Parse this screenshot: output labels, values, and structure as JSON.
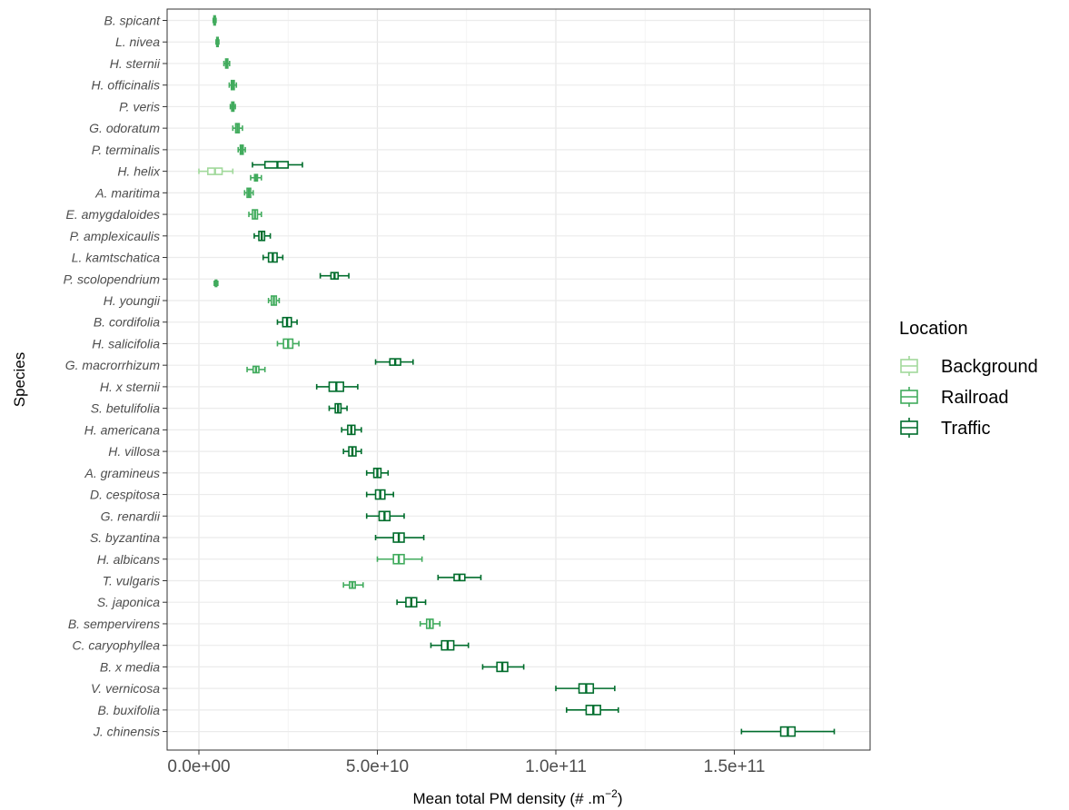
{
  "chart_data": {
    "type": "boxplot",
    "xlabel": "Mean total PM density (# .m",
    "xlabel_sup": "−2",
    "xlabel_end": ")",
    "ylabel": "Species",
    "xlim": [
      -10000000000.0,
      188000000000.0
    ],
    "x_ticks": [
      0,
      50000000000.0,
      100000000000.0,
      150000000000.0
    ],
    "x_tick_labels": [
      "0.0e+00",
      "5.0e+10",
      "1.0e+11",
      "1.5e+11"
    ],
    "grid": true,
    "legend": {
      "title": "Location",
      "placement": "right",
      "entries": [
        {
          "name": "Background",
          "color": "#a1d99b"
        },
        {
          "name": "Railroad",
          "color": "#41ab5d"
        },
        {
          "name": "Traffic",
          "color": "#006d2c"
        }
      ]
    },
    "species": [
      "B. spicant",
      "L. nivea",
      "H. sternii",
      "H. officinalis",
      "P. veris",
      "G. odoratum",
      "P. terminalis",
      "H. helix",
      "A. maritima",
      "E. amygdaloides",
      "P. amplexicaulis",
      "L. kamtschatica",
      "P. scolopendrium",
      "H. youngii",
      "B. cordifolia",
      "H. salicifolia",
      "G. macrorrhizum",
      "H. x sternii",
      "S. betulifolia",
      "H. americana",
      "H. villosa",
      "A. gramineus",
      "D. cespitosa",
      "G. renardii",
      "S. byzantina",
      "H. albicans",
      "T. vulgaris",
      "S. japonica",
      "B. sempervirens",
      "C. caryophyllea",
      "B. x media",
      "V. vernicosa",
      "B. buxifolia",
      "J. chinensis"
    ],
    "boxes": [
      {
        "species": "B. spicant",
        "location": "Railroad",
        "min": 4000000000.0,
        "q1": 4200000000.0,
        "median": 4400000000.0,
        "q3": 4600000000.0,
        "max": 4800000000.0
      },
      {
        "species": "L. nivea",
        "location": "Railroad",
        "min": 4800000000.0,
        "q1": 5000000000.0,
        "median": 5200000000.0,
        "q3": 5400000000.0,
        "max": 5600000000.0
      },
      {
        "species": "H. sternii",
        "location": "Railroad",
        "min": 7000000000.0,
        "q1": 7500000000.0,
        "median": 7800000000.0,
        "q3": 8100000000.0,
        "max": 8600000000.0
      },
      {
        "species": "H. officinalis",
        "location": "Railroad",
        "min": 8500000000.0,
        "q1": 9100000000.0,
        "median": 9500000000.0,
        "q3": 9900000000.0,
        "max": 10500000000.0
      },
      {
        "species": "P. veris",
        "location": "Railroad",
        "min": 8800000000.0,
        "q1": 9200000000.0,
        "median": 9500000000.0,
        "q3": 9800000000.0,
        "max": 10200000000.0
      },
      {
        "species": "G. odoratum",
        "location": "Railroad",
        "min": 9500000000.0,
        "q1": 10300000000.0,
        "median": 10800000000.0,
        "q3": 11300000000.0,
        "max": 12200000000.0
      },
      {
        "species": "P. terminalis",
        "location": "Railroad",
        "min": 11000000000.0,
        "q1": 11600000000.0,
        "median": 12000000000.0,
        "q3": 12400000000.0,
        "max": 13000000000.0
      },
      {
        "species": "H. helix",
        "location": "Traffic",
        "min": 15000000000.0,
        "q1": 18500000000.0,
        "median": 22000000000.0,
        "q3": 25000000000.0,
        "max": 29000000000.0,
        "offset": -0.3
      },
      {
        "species": "H. helix",
        "location": "Background",
        "min": 0,
        "q1": 2500000000.0,
        "median": 4500000000.0,
        "q3": 6500000000.0,
        "max": 9500000000.0,
        "offset": 0.0
      },
      {
        "species": "H. helix",
        "location": "Railroad",
        "min": 14500000000.0,
        "q1": 15600000000.0,
        "median": 16000000000.0,
        "q3": 16400000000.0,
        "max": 17500000000.0,
        "offset": 0.3
      },
      {
        "species": "A. maritima",
        "location": "Railroad",
        "min": 12800000000.0,
        "q1": 13500000000.0,
        "median": 14000000000.0,
        "q3": 14500000000.0,
        "max": 15200000000.0
      },
      {
        "species": "E. amygdaloides",
        "location": "Railroad",
        "min": 14000000000.0,
        "q1": 15000000000.0,
        "median": 15700000000.0,
        "q3": 16400000000.0,
        "max": 17500000000.0
      },
      {
        "species": "P. amplexicaulis",
        "location": "Traffic",
        "min": 15500000000.0,
        "q1": 16800000000.0,
        "median": 17600000000.0,
        "q3": 18400000000.0,
        "max": 20000000000.0
      },
      {
        "species": "L. kamtschatica",
        "location": "Traffic",
        "min": 18000000000.0,
        "q1": 19500000000.0,
        "median": 20700000000.0,
        "q3": 21900000000.0,
        "max": 23500000000.0
      },
      {
        "species": "P. scolopendrium",
        "location": "Traffic",
        "min": 34000000000.0,
        "q1": 37000000000.0,
        "median": 38000000000.0,
        "q3": 39000000000.0,
        "max": 42000000000.0,
        "offset": -0.15
      },
      {
        "species": "P. scolopendrium",
        "location": "Railroad",
        "min": 4300000000.0,
        "q1": 4600000000.0,
        "median": 4800000000.0,
        "q3": 5000000000.0,
        "max": 5300000000.0,
        "offset": 0.2
      },
      {
        "species": "H. youngii",
        "location": "Railroad",
        "min": 19500000000.0,
        "q1": 20300000000.0,
        "median": 21000000000.0,
        "q3": 21700000000.0,
        "max": 22500000000.0
      },
      {
        "species": "B. cordifolia",
        "location": "Traffic",
        "min": 22000000000.0,
        "q1": 23500000000.0,
        "median": 24700000000.0,
        "q3": 25900000000.0,
        "max": 27500000000.0
      },
      {
        "species": "H. salicifolia",
        "location": "Railroad",
        "min": 22000000000.0,
        "q1": 23700000000.0,
        "median": 25000000000.0,
        "q3": 26300000000.0,
        "max": 28000000000.0
      },
      {
        "species": "G. macrorrhizum",
        "location": "Traffic",
        "min": 49500000000.0,
        "q1": 53500000000.0,
        "median": 55000000000.0,
        "q3": 56500000000.0,
        "max": 60000000000.0,
        "offset": -0.15
      },
      {
        "species": "G. macrorrhizum",
        "location": "Railroad",
        "min": 13500000000.0,
        "q1": 15200000000.0,
        "median": 16000000000.0,
        "q3": 16800000000.0,
        "max": 18500000000.0,
        "offset": 0.2
      },
      {
        "species": "H. x sternii",
        "location": "Traffic",
        "min": 33000000000.0,
        "q1": 36500000000.0,
        "median": 38500000000.0,
        "q3": 40500000000.0,
        "max": 44500000000.0
      },
      {
        "species": "S. betulifolia",
        "location": "Traffic",
        "min": 36500000000.0,
        "q1": 38200000000.0,
        "median": 39000000000.0,
        "q3": 39800000000.0,
        "max": 41500000000.0
      },
      {
        "species": "H. americana",
        "location": "Traffic",
        "min": 40000000000.0,
        "q1": 41700000000.0,
        "median": 42700000000.0,
        "q3": 43700000000.0,
        "max": 45500000000.0
      },
      {
        "species": "H. villosa",
        "location": "Traffic",
        "min": 40500000000.0,
        "q1": 42000000000.0,
        "median": 43000000000.0,
        "q3": 44000000000.0,
        "max": 45500000000.0
      },
      {
        "species": "A. gramineus",
        "location": "Traffic",
        "min": 47000000000.0,
        "q1": 49000000000.0,
        "median": 50000000000.0,
        "q3": 51000000000.0,
        "max": 53000000000.0
      },
      {
        "species": "D. cespitosa",
        "location": "Traffic",
        "min": 47000000000.0,
        "q1": 49500000000.0,
        "median": 50800000000.0,
        "q3": 52100000000.0,
        "max": 54500000000.0
      },
      {
        "species": "G. renardii",
        "location": "Traffic",
        "min": 47000000000.0,
        "q1": 50500000000.0,
        "median": 52000000000.0,
        "q3": 53500000000.0,
        "max": 57500000000.0
      },
      {
        "species": "S. byzantina",
        "location": "Traffic",
        "min": 49500000000.0,
        "q1": 54500000000.0,
        "median": 56000000000.0,
        "q3": 57500000000.0,
        "max": 63000000000.0
      },
      {
        "species": "H. albicans",
        "location": "Railroad",
        "min": 50000000000.0,
        "q1": 54500000000.0,
        "median": 56000000000.0,
        "q3": 57500000000.0,
        "max": 62500000000.0
      },
      {
        "species": "T. vulgaris",
        "location": "Traffic",
        "min": 67000000000.0,
        "q1": 71500000000.0,
        "median": 73000000000.0,
        "q3": 74500000000.0,
        "max": 79000000000.0,
        "offset": -0.15
      },
      {
        "species": "T. vulgaris",
        "location": "Railroad",
        "min": 40500000000.0,
        "q1": 42200000000.0,
        "median": 43000000000.0,
        "q3": 43800000000.0,
        "max": 46000000000.0,
        "offset": 0.2
      },
      {
        "species": "S. japonica",
        "location": "Traffic",
        "min": 55500000000.0,
        "q1": 58000000000.0,
        "median": 59500000000.0,
        "q3": 61000000000.0,
        "max": 63500000000.0
      },
      {
        "species": "B. sempervirens",
        "location": "Railroad",
        "min": 62000000000.0,
        "q1": 63800000000.0,
        "median": 64700000000.0,
        "q3": 65600000000.0,
        "max": 67500000000.0
      },
      {
        "species": "C. caryophyllea",
        "location": "Traffic",
        "min": 65000000000.0,
        "q1": 68000000000.0,
        "median": 69700000000.0,
        "q3": 71400000000.0,
        "max": 75500000000.0
      },
      {
        "species": "B. x media",
        "location": "Traffic",
        "min": 79500000000.0,
        "q1": 83500000000.0,
        "median": 85000000000.0,
        "q3": 86500000000.0,
        "max": 91000000000.0
      },
      {
        "species": "V. vernicosa",
        "location": "Traffic",
        "min": 100000000000.0,
        "q1": 106500000000.0,
        "median": 108500000000.0,
        "q3": 110500000000.0,
        "max": 116500000000.0
      },
      {
        "species": "B. buxifolia",
        "location": "Traffic",
        "min": 103000000000.0,
        "q1": 108500000000.0,
        "median": 110500000000.0,
        "q3": 112500000000.0,
        "max": 117500000000.0
      },
      {
        "species": "J. chinensis",
        "location": "Traffic",
        "min": 152000000000.0,
        "q1": 163000000000.0,
        "median": 165000000000.0,
        "q3": 167000000000.0,
        "max": 178000000000.0
      }
    ]
  }
}
